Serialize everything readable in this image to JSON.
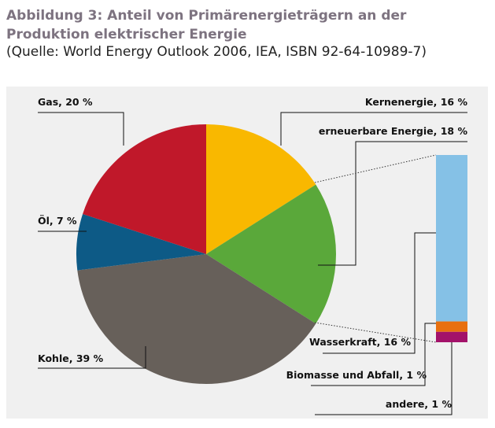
{
  "chart_data": {
    "type": "pie",
    "title": "Abbildung 3: Anteil von Primärenergieträgern an der Produktion elektrischer Energie",
    "subtitle": "(Quelle: World Energy Outlook 2006, IEA, ISBN 92-64-10989-7)",
    "values": [
      16,
      18,
      39,
      7,
      20
    ],
    "value_labels": [
      "Kernenergie, 16 %",
      "erneuerbare Energie, 18 %",
      "Kohle, 39 %",
      "Öl, 7 %",
      "Gas, 20 %"
    ],
    "colors": [
      "#f9b800",
      "#5aa83a",
      "#67605a",
      "#0d5a86",
      "#c0182a"
    ],
    "breakdown": {
      "values": [
        16,
        1,
        1
      ],
      "value_labels": [
        "Wasserkraft, 16 %",
        "Biomasse und Abfall, 1 %",
        "andere, 1 %"
      ],
      "colors": [
        "#85c1e6",
        "#e8700f",
        "#a3126a"
      ]
    }
  }
}
